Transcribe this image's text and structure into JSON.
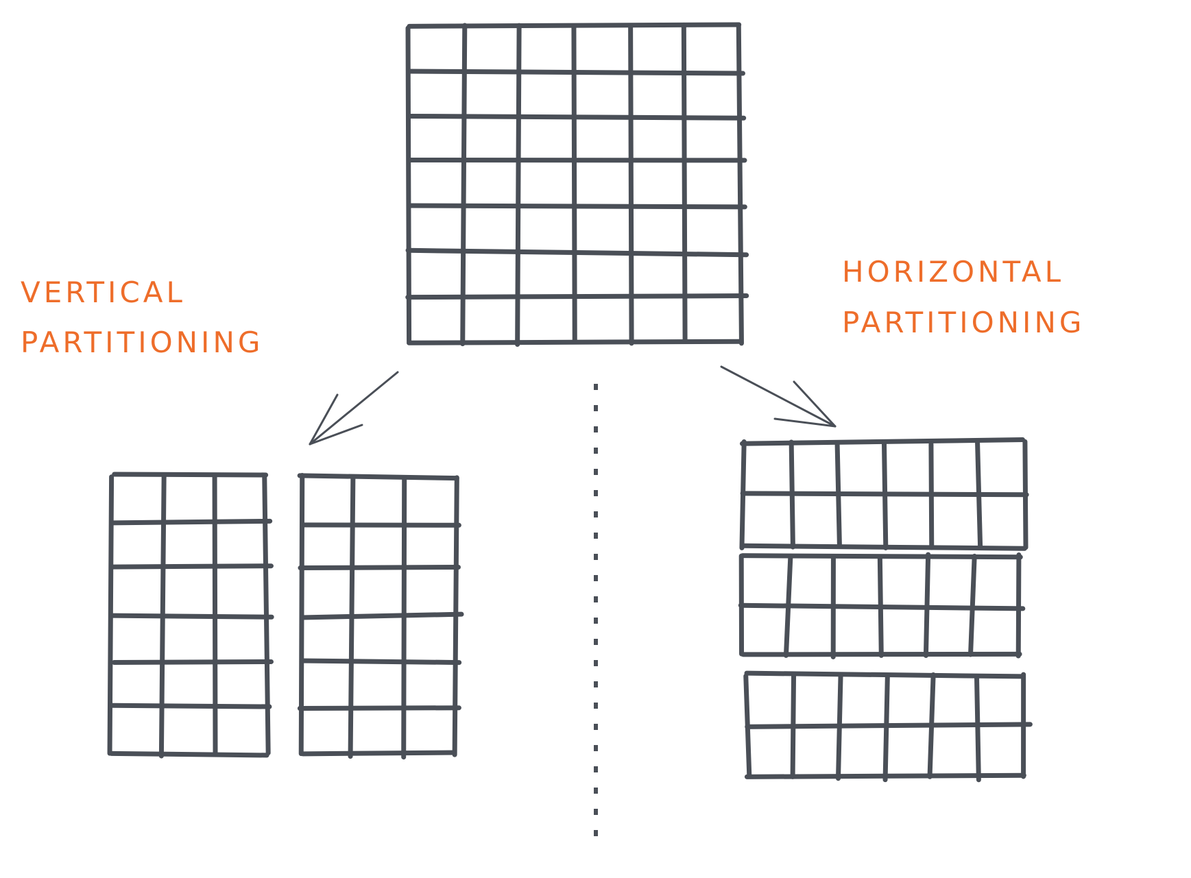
{
  "labels": {
    "vertical": [
      "VERTICAL",
      "PARTITIONING"
    ],
    "horizontal": [
      "HORIZONTAL",
      "PARTITIONING"
    ]
  },
  "colors": {
    "ink": "#4a4f57",
    "accent": "#ee6d2a",
    "background": "#ffffff"
  },
  "diagram": {
    "source_table": {
      "rows": 7,
      "columns": 6
    },
    "vertical_partitions": [
      {
        "rows": 6,
        "columns": 3
      },
      {
        "rows": 6,
        "columns": 3
      }
    ],
    "horizontal_partitions": [
      {
        "rows": 2,
        "columns": 6
      },
      {
        "rows": 2,
        "columns": 6
      },
      {
        "rows": 2,
        "columns": 6
      }
    ]
  }
}
